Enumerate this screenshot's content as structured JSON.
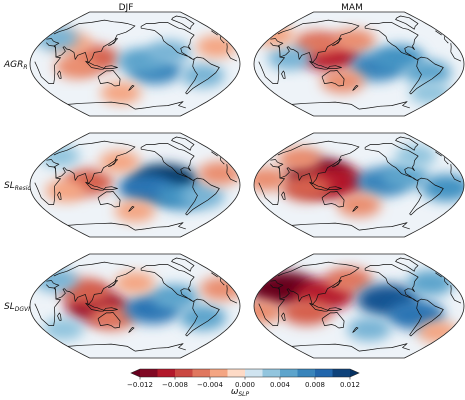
{
  "chart_data": {
    "type": "heatmap",
    "projection": "Robinson (global, Pacific-centered)",
    "columns": [
      "DJF",
      "MAM"
    ],
    "rows": [
      {
        "label_main": "AGR",
        "label_sub": "R"
      },
      {
        "label_main": "SL",
        "label_sub": "Resid"
      },
      {
        "label_main": "SL",
        "label_sub": "DGVMs"
      }
    ],
    "colorbar": {
      "label_main": "ω",
      "label_sub": "SLP",
      "ticks": [
        "−0.012",
        "−0.008",
        "−0.004",
        "0.000",
        "0.004",
        "0.008",
        "0.012"
      ],
      "range": [
        -0.012,
        0.012
      ],
      "colormap": "RdBu_r (red = negative, blue = positive)",
      "extend": "both"
    },
    "panels": [
      {
        "row": 0,
        "col": 0,
        "anomalies": [
          {
            "lon": 110,
            "lat": 10,
            "value": -0.006
          },
          {
            "lon": 80,
            "lat": -5,
            "value": -0.004
          },
          {
            "lon": 60,
            "lat": 35,
            "value": -0.003
          },
          {
            "lon": 215,
            "lat": -10,
            "value": 0.007
          },
          {
            "lon": 190,
            "lat": 5,
            "value": 0.005
          },
          {
            "lon": 240,
            "lat": 20,
            "value": 0.004
          },
          {
            "lon": 300,
            "lat": -20,
            "value": 0.004
          },
          {
            "lon": 20,
            "lat": 45,
            "value": 0.004
          },
          {
            "lon": 150,
            "lat": -50,
            "value": -0.003
          },
          {
            "lon": 330,
            "lat": 30,
            "value": -0.003
          }
        ]
      },
      {
        "row": 0,
        "col": 1,
        "anomalies": [
          {
            "lon": 130,
            "lat": 15,
            "value": -0.009
          },
          {
            "lon": 100,
            "lat": 35,
            "value": -0.005
          },
          {
            "lon": 170,
            "lat": 40,
            "value": -0.004
          },
          {
            "lon": 210,
            "lat": -5,
            "value": 0.007
          },
          {
            "lon": 250,
            "lat": 10,
            "value": 0.006
          },
          {
            "lon": 60,
            "lat": 10,
            "value": 0.004
          },
          {
            "lon": 300,
            "lat": -15,
            "value": 0.005
          },
          {
            "lon": 0,
            "lat": 50,
            "value": -0.003
          },
          {
            "lon": 150,
            "lat": -30,
            "value": -0.004
          },
          {
            "lon": 330,
            "lat": -50,
            "value": 0.003
          }
        ]
      },
      {
        "row": 1,
        "col": 0,
        "anomalies": [
          {
            "lon": 100,
            "lat": 5,
            "value": -0.006
          },
          {
            "lon": 60,
            "lat": -10,
            "value": -0.003
          },
          {
            "lon": 230,
            "lat": 5,
            "value": 0.012
          },
          {
            "lon": 200,
            "lat": -5,
            "value": 0.008
          },
          {
            "lon": 260,
            "lat": -20,
            "value": 0.006
          },
          {
            "lon": 300,
            "lat": -20,
            "value": 0.004
          },
          {
            "lon": 20,
            "lat": 50,
            "value": 0.003
          },
          {
            "lon": 150,
            "lat": 40,
            "value": -0.003
          },
          {
            "lon": 330,
            "lat": 20,
            "value": -0.004
          },
          {
            "lon": 180,
            "lat": -45,
            "value": -0.003
          }
        ]
      },
      {
        "row": 1,
        "col": 1,
        "anomalies": [
          {
            "lon": 110,
            "lat": 15,
            "value": -0.012
          },
          {
            "lon": 140,
            "lat": 5,
            "value": -0.009
          },
          {
            "lon": 90,
            "lat": -5,
            "value": -0.006
          },
          {
            "lon": 220,
            "lat": 5,
            "value": 0.007
          },
          {
            "lon": 260,
            "lat": 15,
            "value": 0.005
          },
          {
            "lon": 330,
            "lat": -5,
            "value": 0.006
          },
          {
            "lon": 20,
            "lat": 10,
            "value": -0.004
          },
          {
            "lon": 180,
            "lat": -35,
            "value": -0.004
          },
          {
            "lon": 300,
            "lat": 50,
            "value": 0.003
          },
          {
            "lon": 60,
            "lat": 45,
            "value": -0.004
          }
        ]
      },
      {
        "row": 2,
        "col": 0,
        "anomalies": [
          {
            "lon": 115,
            "lat": 0,
            "value": -0.01
          },
          {
            "lon": 90,
            "lat": 25,
            "value": -0.006
          },
          {
            "lon": 140,
            "lat": -20,
            "value": -0.005
          },
          {
            "lon": 210,
            "lat": -5,
            "value": 0.008
          },
          {
            "lon": 250,
            "lat": 15,
            "value": 0.005
          },
          {
            "lon": 300,
            "lat": -20,
            "value": 0.005
          },
          {
            "lon": 20,
            "lat": 45,
            "value": 0.004
          },
          {
            "lon": 340,
            "lat": 30,
            "value": -0.004
          },
          {
            "lon": 180,
            "lat": 40,
            "value": -0.003
          },
          {
            "lon": 40,
            "lat": -40,
            "value": 0.003
          }
        ]
      },
      {
        "row": 2,
        "col": 1,
        "anomalies": [
          {
            "lon": 40,
            "lat": 30,
            "value": -0.012
          },
          {
            "lon": 120,
            "lat": 20,
            "value": -0.009
          },
          {
            "lon": 90,
            "lat": -10,
            "value": -0.006
          },
          {
            "lon": 160,
            "lat": 45,
            "value": -0.005
          },
          {
            "lon": 230,
            "lat": 10,
            "value": 0.01
          },
          {
            "lon": 280,
            "lat": -15,
            "value": 0.008
          },
          {
            "lon": 320,
            "lat": 40,
            "value": 0.005
          },
          {
            "lon": 200,
            "lat": -40,
            "value": 0.004
          },
          {
            "lon": 10,
            "lat": -10,
            "value": -0.004
          },
          {
            "lon": 340,
            "lat": -45,
            "value": -0.003
          }
        ]
      }
    ]
  }
}
